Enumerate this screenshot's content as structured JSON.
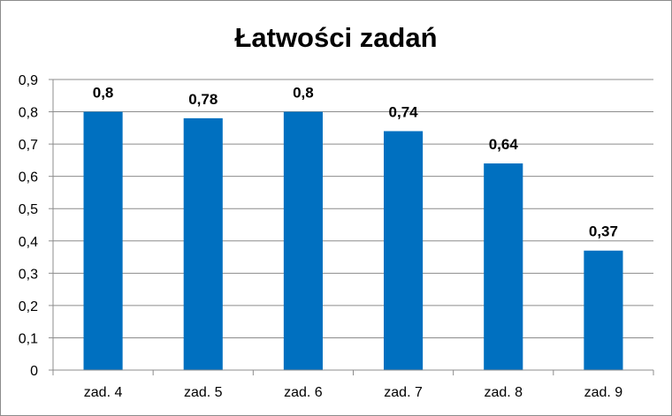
{
  "chart_data": {
    "type": "bar",
    "title": "Łatwości zadań",
    "categories": [
      "zad. 4",
      "zad. 5",
      "zad. 6",
      "zad. 7",
      "zad. 8",
      "zad. 9"
    ],
    "values": [
      0.8,
      0.78,
      0.8,
      0.74,
      0.64,
      0.37
    ],
    "data_labels": [
      "0,8",
      "0,78",
      "0,8",
      "0,74",
      "0,64",
      "0,37"
    ],
    "y_ticks": [
      "0",
      "0,1",
      "0,2",
      "0,3",
      "0,4",
      "0,5",
      "0,6",
      "0,7",
      "0,8",
      "0,9"
    ],
    "ylim": [
      0,
      0.9
    ],
    "xlabel": "",
    "ylabel": "",
    "grid": true,
    "legend": "none",
    "bar_color": "#0070C0"
  }
}
